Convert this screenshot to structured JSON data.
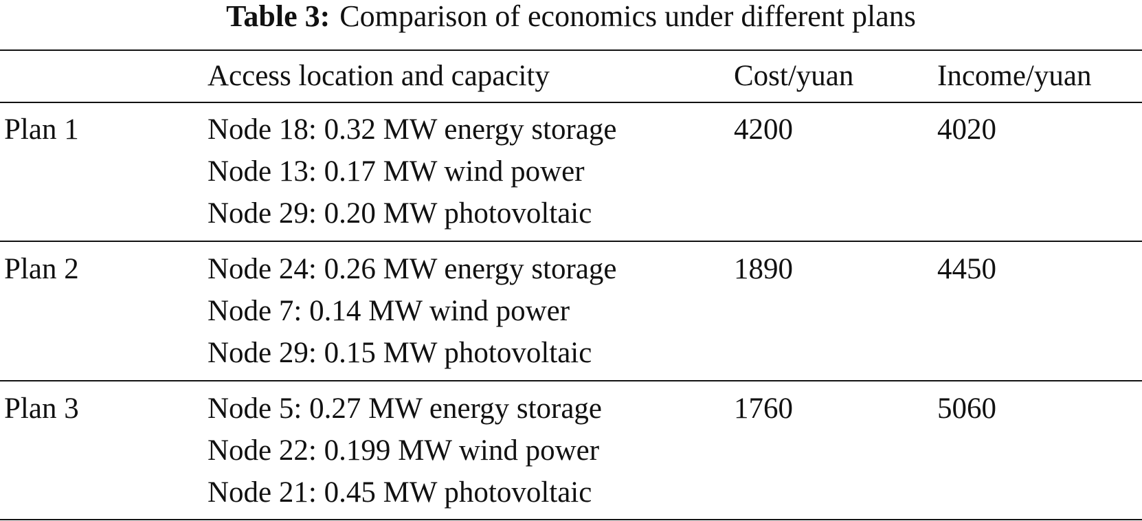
{
  "caption": {
    "label": "Table 3:",
    "text": "Comparison of economics under different plans"
  },
  "table": {
    "headers": {
      "plan": "",
      "access": "Access location and capacity",
      "cost": "Cost/yuan",
      "income": "Income/yuan"
    },
    "rows": [
      {
        "plan": "Plan 1",
        "access": [
          "Node 18: 0.32 MW energy storage",
          "Node 13: 0.17 MW wind power",
          "Node 29: 0.20 MW photovoltaic"
        ],
        "cost": "4200",
        "income": "4020"
      },
      {
        "plan": "Plan 2",
        "access": [
          "Node 24: 0.26 MW energy storage",
          "Node 7: 0.14 MW wind power",
          "Node 29: 0.15 MW photovoltaic"
        ],
        "cost": "1890",
        "income": "4450"
      },
      {
        "plan": "Plan 3",
        "access": [
          "Node 5: 0.27 MW energy storage",
          "Node 22: 0.199 MW wind power",
          "Node 21: 0.45 MW photovoltaic"
        ],
        "cost": "1760",
        "income": "5060"
      }
    ]
  }
}
